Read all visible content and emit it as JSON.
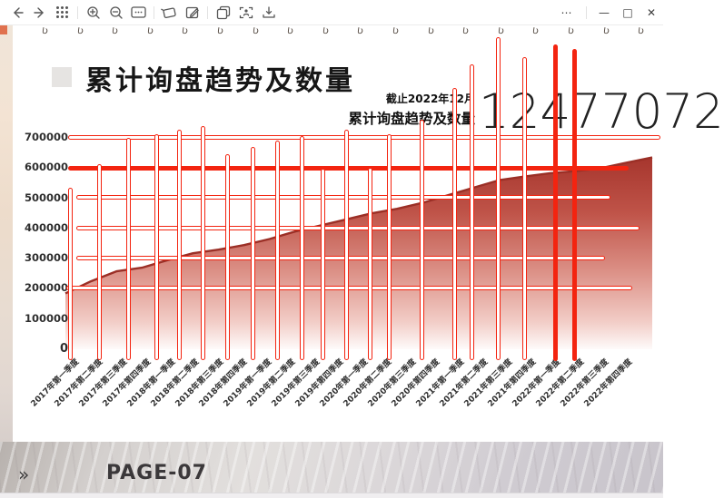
{
  "window": {
    "controls": {
      "more": "⋯",
      "minimize": "—",
      "maximize": "□",
      "close": "✕"
    }
  },
  "toolbar": {
    "icons": [
      "back",
      "forward",
      "grid-view",
      "zoom-in",
      "zoom-out",
      "slideshow-card",
      "rotate-shape",
      "edit",
      "copy",
      "presenter-scan",
      "download"
    ]
  },
  "deco": {
    "squiggle_char": "Ʋ",
    "squiggle_count": 18,
    "squiggle_start_x": 46,
    "squiggle_step_x": 38.6
  },
  "slide": {
    "title": "累计询盘趋势及数量",
    "stat": {
      "caption_line1": "截止2022年12月",
      "caption_line2": "累计询盘趋势及数量",
      "value": "12477072"
    }
  },
  "footer": {
    "chevron": "»",
    "page_label": "PAGE-07"
  },
  "chart_data": {
    "type": "area",
    "title": "累计询盘趋势及数量",
    "categories": [
      "2017年第一季度",
      "2017年第二季度",
      "2017年第三季度",
      "2017年第四季度",
      "2018年第一季度",
      "2018年第二季度",
      "2018年第三季度",
      "2018年第四季度",
      "2019年第一季度",
      "2019年第二季度",
      "2019年第三季度",
      "2019年第四季度",
      "2020年第一季度",
      "2020年第二季度",
      "2020年第三季度",
      "2020年第四季度",
      "2021年第一季度",
      "2021年第二季度",
      "2021年第三季度",
      "2021年第四季度",
      "2022年第一季度",
      "2022年第二季度",
      "2022年第三季度",
      "2022年第四季度"
    ],
    "values": [
      185000,
      225000,
      258000,
      270000,
      295000,
      318000,
      330000,
      345000,
      365000,
      390000,
      410000,
      430000,
      450000,
      465000,
      485000,
      510000,
      535000,
      560000,
      572000,
      583000,
      590000,
      600000,
      618000,
      635000
    ],
    "y_ticks": [
      700000,
      600000,
      500000,
      400000,
      300000,
      200000,
      100000,
      0
    ],
    "ylim": [
      0,
      700000
    ],
    "xlabel": "",
    "ylabel": "",
    "legend": "none",
    "grid": "red artifact lines",
    "area_top_color": "#a4332b",
    "area_edge_color": "#9b2f26",
    "plot": {
      "x0": 72,
      "x1": 718,
      "y_zero": 385,
      "y_max": 152,
      "xlabel_start": 80,
      "xlabel_step": 26.48,
      "xlabel_top": 392
    }
  },
  "glitch": {
    "color": "#f32410",
    "bar_bottom": 398,
    "vertical_bars": [
      {
        "x": 78,
        "top": 207
      },
      {
        "x": 110,
        "top": 181
      },
      {
        "x": 142,
        "top": 152
      },
      {
        "x": 173,
        "top": 148
      },
      {
        "x": 198,
        "top": 143
      },
      {
        "x": 224,
        "top": 139
      },
      {
        "x": 251,
        "top": 170
      },
      {
        "x": 279,
        "top": 162
      },
      {
        "x": 306,
        "top": 155
      },
      {
        "x": 333,
        "top": 150
      },
      {
        "x": 356,
        "top": 186
      },
      {
        "x": 382,
        "top": 143
      },
      {
        "x": 408,
        "top": 185
      },
      {
        "x": 429,
        "top": 148
      },
      {
        "x": 465,
        "top": 132
      },
      {
        "x": 501,
        "top": 97
      },
      {
        "x": 520,
        "top": 71
      },
      {
        "x": 549,
        "top": 41
      },
      {
        "x": 578,
        "top": 63
      },
      {
        "x": 611,
        "top": 49,
        "solid": true
      },
      {
        "x": 632,
        "top": 54,
        "solid": true
      }
    ],
    "h_lines": [
      {
        "y": 152,
        "x1": 75,
        "x2": 728,
        "style": "hollow"
      },
      {
        "y": 185,
        "x1": 75,
        "x2": 692,
        "style": "solid"
      },
      {
        "y": 218,
        "x1": 84,
        "x2": 673,
        "style": "hollow"
      },
      {
        "y": 252,
        "x1": 84,
        "x2": 705,
        "style": "hollow"
      },
      {
        "y": 285,
        "x1": 84,
        "x2": 667,
        "style": "hollow"
      },
      {
        "y": 318,
        "x1": 73,
        "x2": 697,
        "style": "hollow"
      }
    ]
  }
}
